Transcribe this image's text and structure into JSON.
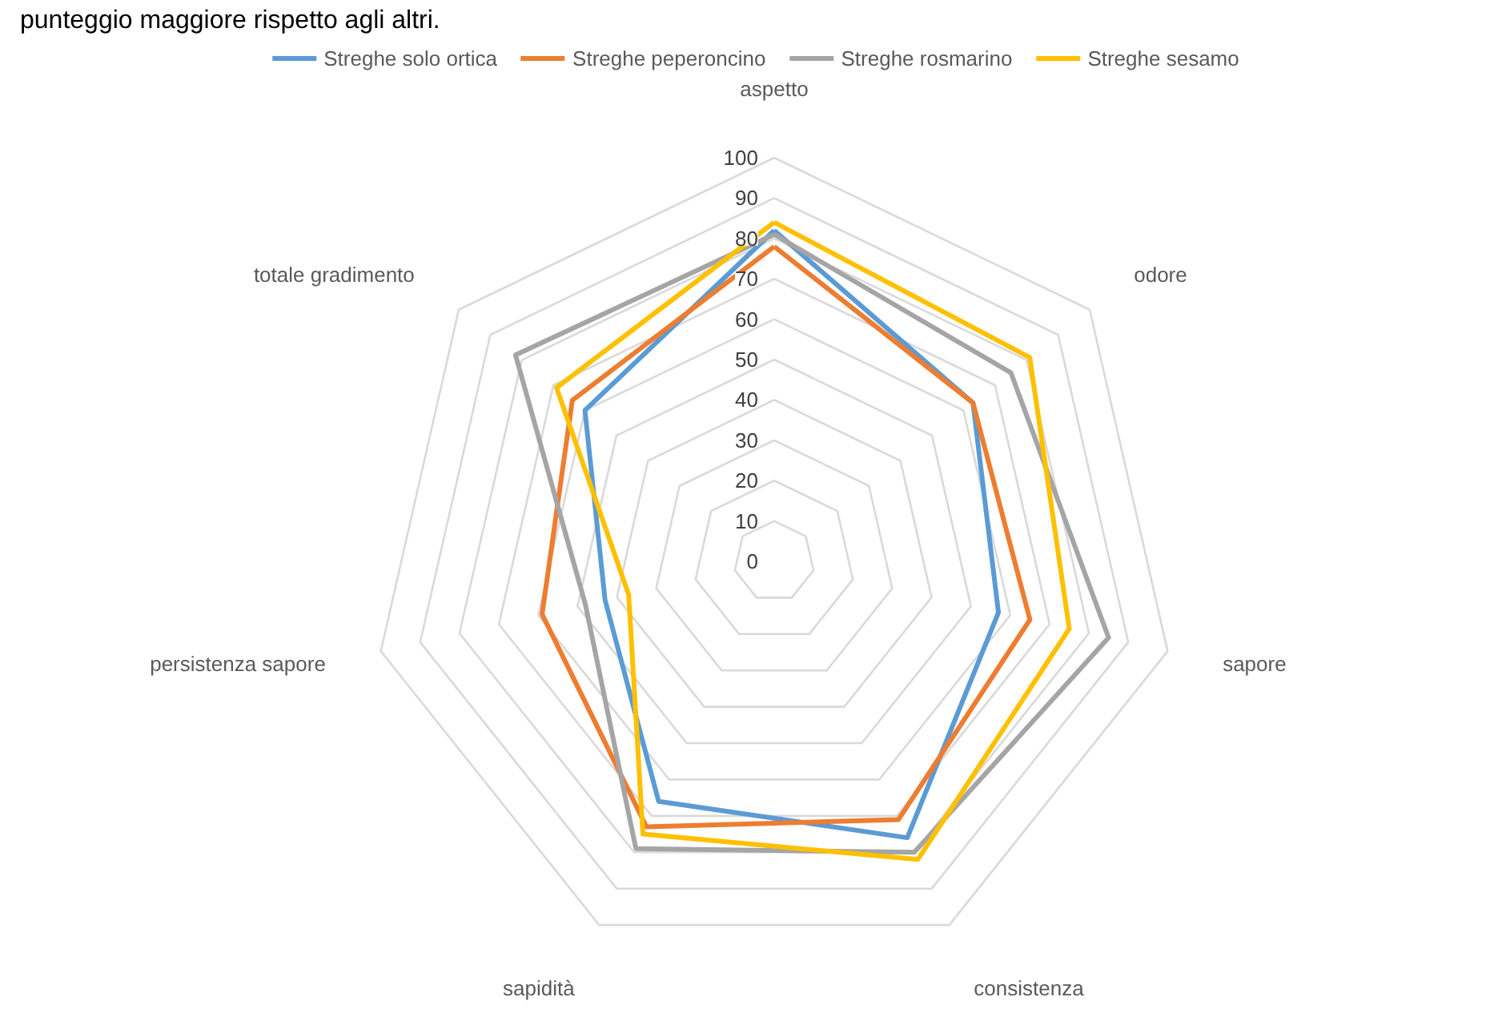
{
  "chart_data": {
    "type": "radar",
    "categories": [
      "aspetto",
      "odore",
      "sapore",
      "consistenza",
      "sapidità",
      "persistenza sapore",
      "totale gradimento"
    ],
    "series": [
      {
        "name": "Streghe solo ortica",
        "color": "#5b9bd5",
        "values": [
          82,
          63,
          57,
          76,
          66,
          43,
          60
        ]
      },
      {
        "name": "Streghe peperoncino",
        "color": "#ed7d31",
        "values": [
          78,
          63,
          65,
          71,
          73,
          59,
          64
        ]
      },
      {
        "name": "Streghe rosmarino",
        "color": "#a5a5a5",
        "values": [
          81,
          75,
          85,
          80,
          79,
          48,
          82
        ]
      },
      {
        "name": "Streghe sesamo",
        "color": "#ffc000",
        "values": [
          84,
          81,
          75,
          82,
          75,
          37,
          69
        ]
      }
    ],
    "ylim": [
      0,
      100
    ],
    "yticks": [
      0,
      10,
      20,
      30,
      40,
      50,
      60,
      70,
      80,
      90,
      100
    ],
    "grid": true,
    "legend": "top",
    "annotations": [
      "punteggio maggiore rispetto agli altri."
    ]
  }
}
